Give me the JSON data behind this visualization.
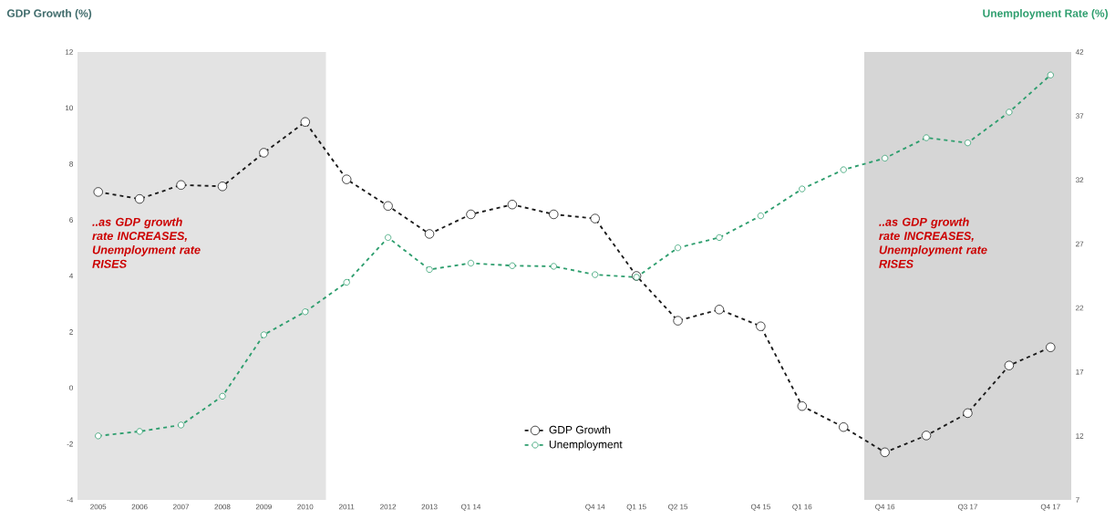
{
  "chart_data": {
    "type": "line",
    "ylabel": "GDP Growth (%)",
    "y2label": "Unemployment Rate (%)",
    "categories": [
      "2005",
      "2006",
      "2007",
      "2008",
      "2009",
      "2010",
      "2011",
      "2012",
      "2013",
      "Q1 14",
      null,
      null,
      "Q4 14",
      "Q1 15",
      "Q2 15",
      null,
      "Q4 15",
      "Q1 16",
      null,
      "Q4 16",
      null,
      "Q3 17",
      null,
      "Q4 17"
    ],
    "series": [
      {
        "name": "GDP Growth",
        "color": "#1a1a1a",
        "values": [
          7.0,
          6.75,
          7.25,
          7.2,
          8.4,
          9.5,
          7.45,
          6.5,
          5.5,
          6.2,
          6.55,
          6.2,
          6.05,
          4.0,
          2.4,
          2.8,
          2.2,
          -0.65,
          -1.4,
          -2.3,
          -1.7,
          -0.9,
          0.8,
          1.45
        ]
      },
      {
        "name": "Unemployment",
        "color": "#2e9e6e",
        "axis": "y2",
        "values": [
          12.0,
          12.35,
          12.85,
          15.1,
          19.9,
          21.7,
          24.0,
          27.5,
          25.0,
          25.5,
          25.3,
          25.25,
          24.6,
          24.4,
          26.7,
          27.5,
          29.2,
          31.3,
          32.8,
          33.7,
          35.3,
          34.9,
          37.3,
          40.2
        ]
      }
    ],
    "ylim": [
      -4,
      12
    ],
    "yticks": [
      -4,
      -2,
      0,
      2,
      4,
      6,
      8,
      10,
      12
    ],
    "y2lim": [
      7,
      42
    ],
    "y2ticks": [
      7,
      12,
      17,
      22,
      27,
      32,
      37,
      42
    ],
    "bands": [
      {
        "axis": "x",
        "from": "2005",
        "to": "2010",
        "color": "#e3e3e3",
        "label": "..as GDP growth rate INCREASES, Unemployment rate RISES"
      },
      {
        "axis": "x",
        "from": "Q4 16",
        "to": "Q4 17",
        "color": "#d6d6d6",
        "label": "..as GDP growth rate INCREASES, Unemployment rate RISES"
      }
    ],
    "marker": "circle",
    "line_style": "dashed",
    "legend": "bottom",
    "grid": false
  }
}
